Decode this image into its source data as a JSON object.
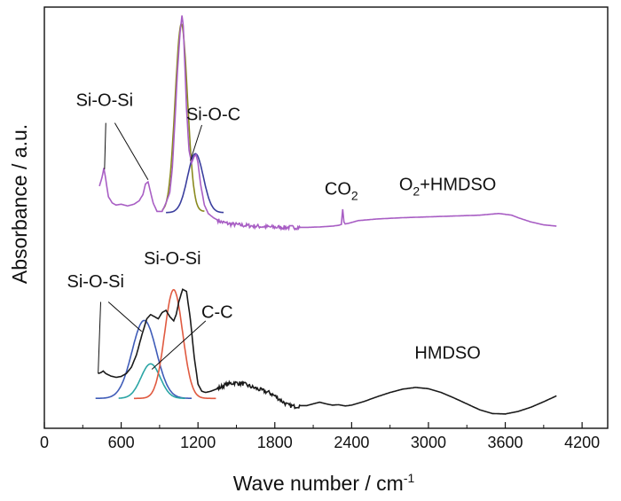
{
  "chart_data": {
    "type": "line",
    "title": "",
    "xlabel": "Wave number / cm",
    "xlabel_sup": "-1",
    "ylabel": "Absorbance / a.u.",
    "xlim": [
      0,
      4400
    ],
    "ylim": [
      0,
      1
    ],
    "xticks": [
      0,
      600,
      1200,
      1800,
      2400,
      3000,
      3600,
      4200
    ],
    "xtick_labels": [
      "0",
      "600",
      "1200",
      "1800",
      "2400",
      "3000",
      "3600",
      "4200"
    ],
    "grid": false,
    "legend": "none",
    "series": [
      {
        "name": "O2+HMDSO",
        "label_main": "O",
        "label_sub": "2",
        "label_rest": "+HMDSO",
        "label_at": [
          3150,
          0.565
        ],
        "color": "#a85ec4",
        "x": [
          430,
          450,
          465,
          480,
          500,
          530,
          560,
          600,
          650,
          700,
          740,
          770,
          790,
          810,
          830,
          850,
          880,
          920,
          950,
          980,
          1000,
          1020,
          1040,
          1060,
          1075,
          1085,
          1095,
          1110,
          1130,
          1150,
          1170,
          1185,
          1200,
          1220,
          1250,
          1280,
          1320,
          1380,
          1450,
          1550,
          1650,
          1750,
          1850,
          1950,
          2050,
          2150,
          2250,
          2300,
          2320,
          2330,
          2340,
          2350,
          2380,
          2450,
          2600,
          2800,
          3000,
          3200,
          3400,
          3550,
          3650,
          3700,
          3800,
          3900,
          4000
        ],
        "y": [
          0.575,
          0.595,
          0.618,
          0.59,
          0.55,
          0.535,
          0.53,
          0.532,
          0.528,
          0.532,
          0.54,
          0.555,
          0.58,
          0.585,
          0.56,
          0.535,
          0.515,
          0.515,
          0.535,
          0.56,
          0.62,
          0.73,
          0.85,
          0.94,
          0.98,
          0.955,
          0.88,
          0.76,
          0.66,
          0.63,
          0.645,
          0.65,
          0.63,
          0.58,
          0.53,
          0.51,
          0.5,
          0.49,
          0.485,
          0.482,
          0.48,
          0.478,
          0.477,
          0.477,
          0.477,
          0.478,
          0.48,
          0.482,
          0.484,
          0.52,
          0.49,
          0.485,
          0.487,
          0.493,
          0.497,
          0.5,
          0.502,
          0.504,
          0.506,
          0.51,
          0.506,
          0.5,
          0.49,
          0.483,
          0.48
        ]
      },
      {
        "name": "HMDSO",
        "label_at": [
          3150,
          0.165
        ],
        "color": "#1a1a1a",
        "x": [
          420,
          440,
          460,
          480,
          520,
          560,
          600,
          640,
          680,
          720,
          760,
          800,
          830,
          860,
          890,
          920,
          950,
          980,
          1010,
          1030,
          1050,
          1080,
          1110,
          1140,
          1170,
          1200,
          1230,
          1260,
          1300,
          1360,
          1420,
          1480,
          1550,
          1620,
          1700,
          1760,
          1800,
          1850,
          1900,
          1950,
          2000,
          2050,
          2100,
          2150,
          2200,
          2250,
          2300,
          2350,
          2400,
          2500,
          2600,
          2700,
          2800,
          2900,
          3000,
          3100,
          3200,
          3300,
          3400,
          3500,
          3600,
          3700,
          3800,
          3900,
          4000
        ],
        "y": [
          0.13,
          0.132,
          0.136,
          0.13,
          0.124,
          0.121,
          0.123,
          0.13,
          0.145,
          0.175,
          0.22,
          0.26,
          0.27,
          0.265,
          0.26,
          0.275,
          0.28,
          0.265,
          0.255,
          0.27,
          0.3,
          0.33,
          0.325,
          0.26,
          0.17,
          0.105,
          0.088,
          0.085,
          0.088,
          0.095,
          0.104,
          0.108,
          0.106,
          0.098,
          0.09,
          0.084,
          0.077,
          0.066,
          0.055,
          0.052,
          0.054,
          0.054,
          0.058,
          0.062,
          0.058,
          0.055,
          0.056,
          0.053,
          0.055,
          0.064,
          0.075,
          0.085,
          0.093,
          0.097,
          0.094,
          0.085,
          0.072,
          0.058,
          0.044,
          0.035,
          0.034,
          0.04,
          0.05,
          0.063,
          0.077
        ]
      }
    ],
    "fitted_peaks": [
      {
        "group": "O2+HMDSO",
        "color": "#8a8a1e",
        "center": 1070,
        "sigma": 48,
        "amplitude": 0.445,
        "baseline": 0.515,
        "x_range": [
          920,
          1250
        ]
      },
      {
        "group": "O2+HMDSO",
        "color": "#3b3f9e",
        "center": 1180,
        "sigma": 62,
        "amplitude": 0.14,
        "baseline": 0.512,
        "x_range": [
          950,
          1400
        ]
      },
      {
        "group": "HMDSO",
        "color": "#3f5cb8",
        "center": 780,
        "sigma": 95,
        "amplitude": 0.185,
        "baseline": 0.071,
        "x_range": [
          400,
          1150
        ]
      },
      {
        "group": "HMDSO",
        "color": "#2ba5a5",
        "center": 830,
        "sigma": 75,
        "amplitude": 0.082,
        "baseline": 0.071,
        "x_range": [
          580,
          1100
        ]
      },
      {
        "group": "HMDSO",
        "color": "#e05a40",
        "center": 1010,
        "sigma": 70,
        "amplitude": 0.258,
        "baseline": 0.071,
        "x_range": [
          700,
          1340
        ]
      }
    ],
    "annotations": [
      {
        "text": "Si-O-Si",
        "at": [
          1050,
          1.03
        ],
        "leaders": []
      },
      {
        "text": "Si-O-Si",
        "at": [
          470,
          0.765
        ],
        "leaders": [
          [
            480,
            0.725,
            470,
            0.615
          ],
          [
            550,
            0.725,
            810,
            0.59
          ]
        ]
      },
      {
        "text": "Si-O-C",
        "at": [
          1320,
          0.732
        ],
        "leaders": [
          [
            1230,
            0.72,
            1140,
            0.635
          ]
        ]
      },
      {
        "text": "CO",
        "sub": "2",
        "at": [
          2320,
          0.555
        ],
        "leaders": []
      },
      {
        "text": "Si-O-Si",
        "at": [
          1000,
          0.39
        ],
        "leaders": []
      },
      {
        "text": "Si-O-Si",
        "at": [
          400,
          0.335
        ],
        "leaders": [
          [
            440,
            0.3,
            420,
            0.13
          ],
          [
            500,
            0.3,
            760,
            0.23
          ]
        ]
      },
      {
        "text": "C-C",
        "at": [
          1350,
          0.262
        ],
        "leaders": [
          [
            1260,
            0.255,
            840,
            0.14
          ]
        ]
      }
    ]
  }
}
